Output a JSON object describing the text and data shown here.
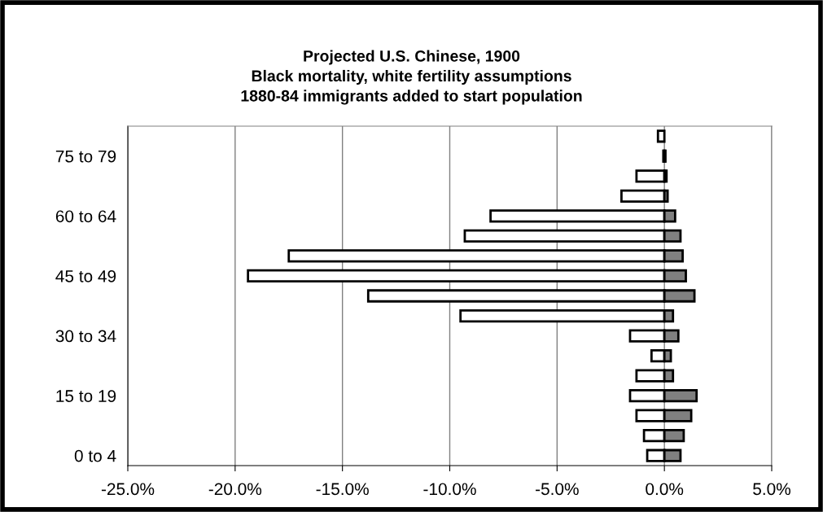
{
  "chart_data": {
    "type": "bar",
    "orientation": "horizontal",
    "title": "Projected U.S. Chinese, 1900\nBlack mortality, white fertility assumptions\n1880-84 immigrants added to start population",
    "categories": [
      null,
      "75 to 79",
      null,
      null,
      "60 to 64",
      null,
      null,
      "45 to 49",
      null,
      null,
      "30 to 34",
      null,
      null,
      "15 to 19",
      null,
      null,
      "0 to 4"
    ],
    "series": [
      {
        "color": "#ffffff",
        "values": [
          -0.3,
          -0.05,
          -1.3,
          -2.0,
          -8.1,
          -9.3,
          -17.5,
          -19.4,
          -13.8,
          -9.5,
          -1.6,
          -0.6,
          -1.3,
          -1.6,
          -1.3,
          -0.95,
          -0.8
        ]
      },
      {
        "color": "#808080",
        "values": [
          null,
          0.05,
          0.1,
          0.15,
          0.5,
          0.75,
          0.85,
          1.0,
          1.4,
          0.4,
          0.65,
          0.3,
          0.4,
          1.5,
          1.25,
          0.9,
          0.75
        ]
      }
    ],
    "xlim": [
      -25,
      5
    ],
    "xticks": [
      {
        "value": -25,
        "label": "-25.0%"
      },
      {
        "value": -20,
        "label": "-20.0%"
      },
      {
        "value": -15,
        "label": "-15.0%"
      },
      {
        "value": -10,
        "label": "-10.0%"
      },
      {
        "value": -5,
        "label": "-5.0%"
      },
      {
        "value": 0,
        "label": "0.0%"
      },
      {
        "value": 5,
        "label": "5.0%"
      }
    ],
    "stacked": true,
    "grid": "x",
    "legend": false
  }
}
